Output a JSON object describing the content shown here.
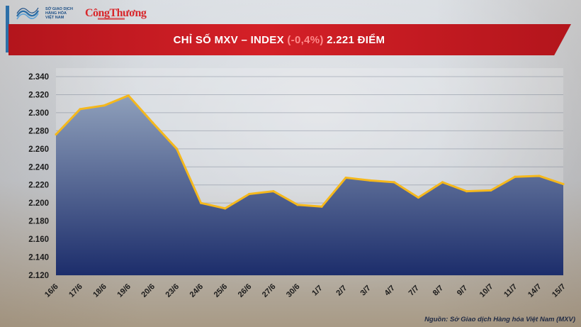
{
  "header": {
    "org_lines": [
      "SỞ GIAO DỊCH",
      "HÀNG HÓA",
      "VIỆT NAM"
    ],
    "brand": "CôngThương"
  },
  "banner": {
    "title_part1": "CHỈ SỐ MXV – INDEX ",
    "title_change": "(-0,4%)",
    "title_part2": " 2.221 ĐIỂM"
  },
  "footer": {
    "source": "Nguồn: Sở Giao dịch Hàng hóa Việt Nam (MXV)"
  },
  "colors": {
    "line": "#f5b81c",
    "area_top": "#8fa0bb",
    "area_bottom": "#1c2d6b",
    "banner": "#c8171e"
  },
  "chart_data": {
    "type": "area",
    "categories": [
      "16/6",
      "17/6",
      "18/6",
      "19/6",
      "20/6",
      "23/6",
      "24/6",
      "25/6",
      "26/6",
      "27/6",
      "30/6",
      "1/7",
      "2/7",
      "3/7",
      "4/7",
      "7/7",
      "8/7",
      "9/7",
      "10/7",
      "11/7",
      "14/7",
      "15/7"
    ],
    "series": [
      {
        "values": [
          2276,
          2304,
          2308,
          2319,
          2289,
          2260,
          2200,
          2194,
          2210,
          2213,
          2198,
          2196,
          2228,
          2225,
          2223,
          2206,
          2223,
          2213,
          2214,
          2229,
          2230,
          2221
        ]
      }
    ],
    "ylim": [
      2120,
      2340
    ],
    "yticks": [
      "2.340",
      "2.320",
      "2.300",
      "2.280",
      "2.260",
      "2.240",
      "2.220",
      "2.200",
      "2.180",
      "2.160",
      "2.140",
      "2.120"
    ],
    "ytick_values": [
      2340,
      2320,
      2300,
      2280,
      2260,
      2240,
      2220,
      2200,
      2180,
      2160,
      2140,
      2120
    ],
    "grid": true,
    "title": "",
    "xlabel": "",
    "ylabel": ""
  }
}
